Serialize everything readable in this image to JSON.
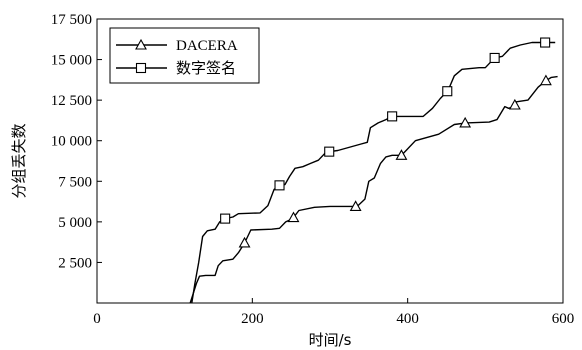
{
  "chart_data": {
    "type": "line",
    "xlabel": "时间/s",
    "ylabel": "分组丢失数",
    "xlim": [
      0,
      600
    ],
    "ylim": [
      0,
      17500
    ],
    "x_ticks": [
      0,
      200,
      400,
      600
    ],
    "x_tick_labels": [
      "0",
      "200",
      "400",
      "600"
    ],
    "y_ticks": [
      2500,
      5000,
      7500,
      10000,
      12500,
      15000,
      17500
    ],
    "y_tick_labels": [
      "2 500",
      "5 000",
      "7 500",
      "10 000",
      "12 500",
      "15 000",
      "17 500"
    ],
    "grid": false,
    "legend_position": "top-left",
    "series": [
      {
        "name": "DACERA",
        "marker": "triangle",
        "points": [
          [
            120,
            0
          ],
          [
            124,
            600
          ],
          [
            128,
            1200
          ],
          [
            132,
            1650
          ],
          [
            140,
            1700
          ],
          [
            152,
            1700
          ],
          [
            156,
            2300
          ],
          [
            162,
            2600
          ],
          [
            175,
            2700
          ],
          [
            182,
            3100
          ],
          [
            190,
            3700
          ],
          [
            198,
            4500
          ],
          [
            225,
            4550
          ],
          [
            235,
            4600
          ],
          [
            243,
            5000
          ],
          [
            252,
            5200
          ],
          [
            260,
            5700
          ],
          [
            280,
            5900
          ],
          [
            300,
            5950
          ],
          [
            335,
            5950
          ],
          [
            345,
            6400
          ],
          [
            350,
            7500
          ],
          [
            357,
            7700
          ],
          [
            365,
            8600
          ],
          [
            372,
            9000
          ],
          [
            380,
            9100
          ],
          [
            392,
            9100
          ],
          [
            398,
            9400
          ],
          [
            410,
            10000
          ],
          [
            440,
            10400
          ],
          [
            460,
            11000
          ],
          [
            475,
            11100
          ],
          [
            505,
            11150
          ],
          [
            515,
            11300
          ],
          [
            520,
            11700
          ],
          [
            525,
            12100
          ],
          [
            530,
            12000
          ],
          [
            537,
            12100
          ],
          [
            540,
            12400
          ],
          [
            555,
            12500
          ],
          [
            568,
            13300
          ],
          [
            578,
            13700
          ],
          [
            585,
            13900
          ],
          [
            593,
            13950
          ]
        ],
        "marker_x": [
          190,
          253,
          333,
          392,
          474,
          538,
          578
        ]
      },
      {
        "name": "数字签名",
        "marker": "square",
        "points": [
          [
            122,
            0
          ],
          [
            126,
            1200
          ],
          [
            131,
            2500
          ],
          [
            136,
            4100
          ],
          [
            142,
            4450
          ],
          [
            152,
            4550
          ],
          [
            158,
            5000
          ],
          [
            165,
            5200
          ],
          [
            175,
            5300
          ],
          [
            182,
            5500
          ],
          [
            210,
            5550
          ],
          [
            220,
            6000
          ],
          [
            228,
            7000
          ],
          [
            235,
            7250
          ],
          [
            242,
            7300
          ],
          [
            248,
            7800
          ],
          [
            255,
            8300
          ],
          [
            265,
            8400
          ],
          [
            275,
            8600
          ],
          [
            285,
            8800
          ],
          [
            295,
            9300
          ],
          [
            310,
            9400
          ],
          [
            340,
            9800
          ],
          [
            348,
            9900
          ],
          [
            352,
            10800
          ],
          [
            362,
            11100
          ],
          [
            372,
            11300
          ],
          [
            380,
            11500
          ],
          [
            420,
            11500
          ],
          [
            432,
            12000
          ],
          [
            442,
            12600
          ],
          [
            452,
            13100
          ],
          [
            460,
            14000
          ],
          [
            470,
            14400
          ],
          [
            492,
            14500
          ],
          [
            500,
            14500
          ],
          [
            508,
            14900
          ],
          [
            512,
            15100
          ],
          [
            522,
            15200
          ],
          [
            532,
            15700
          ],
          [
            545,
            15900
          ],
          [
            560,
            16050
          ],
          [
            578,
            16050
          ],
          [
            590,
            16050
          ]
        ],
        "marker_x": [
          165,
          235,
          299,
          380,
          451,
          512,
          577
        ]
      }
    ]
  }
}
